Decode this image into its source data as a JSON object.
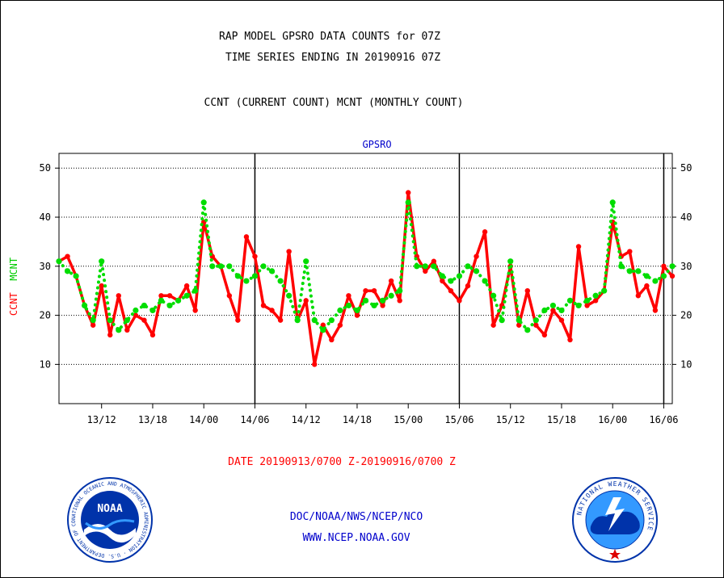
{
  "header": {
    "title_line1": "RAP MODEL GPSRO DATA COUNTS for 07Z",
    "title_line2": "TIME SERIES ENDING IN 20190916 07Z",
    "subtitle": "CCNT (CURRENT COUNT) MCNT (MONTHLY COUNT)"
  },
  "footer": {
    "date_range": "DATE 20190913/0700 Z-20190916/0700 Z",
    "org": "DOC/NOAA/NWS/NCEP/NCO",
    "url": "WWW.NCEP.NOAA.GOV"
  },
  "logos": {
    "left_logo_text": "NOAA",
    "left_ring_text": "NATIONAL OCEANIC AND ATMOSPHERIC ADMINISTRATION · U.S. DEPARTMENT OF COMMERCE",
    "right_ring_text": "NATIONAL WEATHER SERVICE"
  },
  "chart_data": {
    "type": "line",
    "title": "GPSRO",
    "ylabel_parts": [
      "CCNT",
      "MCNT"
    ],
    "ylim": [
      2,
      53
    ],
    "yticks": [
      10,
      20,
      30,
      40,
      50
    ],
    "xlim": [
      0,
      72
    ],
    "xticks": [
      {
        "x": 5,
        "label": "13/12"
      },
      {
        "x": 11,
        "label": "13/18"
      },
      {
        "x": 17,
        "label": "14/00"
      },
      {
        "x": 23,
        "label": "14/06"
      },
      {
        "x": 29,
        "label": "14/12"
      },
      {
        "x": 35,
        "label": "14/18"
      },
      {
        "x": 41,
        "label": "15/00"
      },
      {
        "x": 47,
        "label": "15/06"
      },
      {
        "x": 53,
        "label": "15/12"
      },
      {
        "x": 59,
        "label": "15/18"
      },
      {
        "x": 65,
        "label": "16/00"
      },
      {
        "x": 71,
        "label": "16/06"
      }
    ],
    "day_dividers": [
      23,
      47,
      71
    ],
    "grid": "horizontal dotted",
    "series": [
      {
        "name": "CCNT",
        "color": "#ff0000",
        "style": "solid",
        "values": [
          31,
          32,
          28,
          22,
          18,
          26,
          16,
          24,
          17,
          20,
          19,
          16,
          24,
          24,
          23,
          26,
          21,
          39,
          32,
          30,
          24,
          19,
          36,
          32,
          22,
          21,
          19,
          33,
          19,
          23,
          10,
          18,
          15,
          18,
          24,
          20,
          25,
          25,
          22,
          27,
          23,
          45,
          32,
          29,
          31,
          27,
          25,
          23,
          26,
          32,
          37,
          18,
          22,
          30,
          18,
          25,
          18,
          16,
          21,
          19,
          15,
          34,
          22,
          23,
          25,
          39,
          32,
          33,
          24,
          26,
          21,
          30,
          28
        ]
      },
      {
        "name": "MCNT",
        "color": "#00dd00",
        "style": "dotted",
        "values": [
          31,
          29,
          28,
          22,
          19,
          31,
          19,
          17,
          19,
          21,
          22,
          21,
          23,
          22,
          23,
          24,
          25,
          43,
          30,
          30,
          30,
          28,
          27,
          28,
          30,
          29,
          27,
          24,
          19,
          31,
          19,
          17,
          19,
          21,
          22,
          21,
          23,
          22,
          23,
          24,
          25,
          43,
          30,
          30,
          30,
          28,
          27,
          28,
          30,
          29,
          27,
          24,
          19,
          31,
          19,
          17,
          19,
          21,
          22,
          21,
          23,
          22,
          23,
          24,
          25,
          43,
          30,
          29,
          29,
          28,
          27,
          28,
          30
        ]
      }
    ]
  }
}
